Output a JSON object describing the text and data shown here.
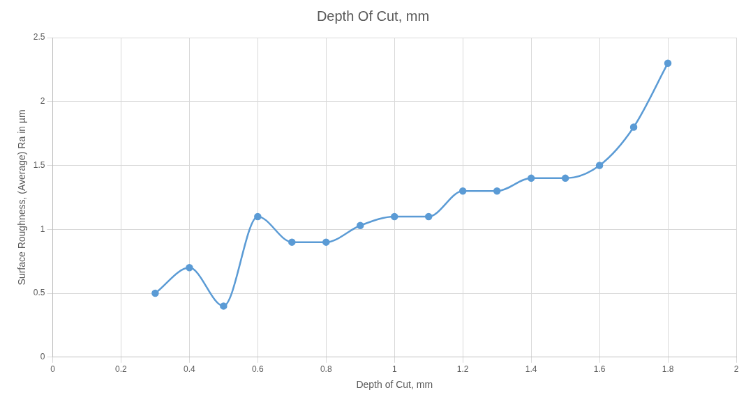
{
  "chart_data": {
    "type": "line",
    "title": "Depth Of Cut, mm",
    "xlabel": "Depth of Cut, mm",
    "ylabel": "Surface Roughness, (Average) Ra in µm",
    "x": [
      0.3,
      0.4,
      0.5,
      0.6,
      0.7,
      0.8,
      0.9,
      1.0,
      1.1,
      1.2,
      1.3,
      1.4,
      1.5,
      1.6,
      1.7,
      1.8
    ],
    "series": [
      {
        "color": "#5b9bd5",
        "values": [
          0.5,
          0.7,
          0.4,
          1.1,
          0.9,
          0.9,
          1.03,
          1.1,
          1.1,
          1.3,
          1.3,
          1.4,
          1.4,
          1.5,
          1.8,
          2.3
        ]
      }
    ],
    "xlim": [
      0,
      2
    ],
    "xticks": [
      0,
      0.2,
      0.4,
      0.6,
      0.8,
      1,
      1.2,
      1.4,
      1.6,
      1.8,
      2
    ],
    "ylim": [
      0,
      2.5
    ],
    "yticks": [
      0,
      0.5,
      1,
      1.5,
      2,
      2.5
    ],
    "grid": true,
    "legend": false,
    "marker": "circle",
    "line_style": "solid"
  }
}
